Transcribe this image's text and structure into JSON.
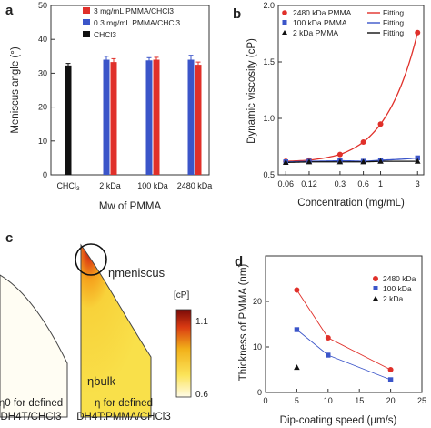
{
  "panels": {
    "a": {
      "label": "a"
    },
    "b": {
      "label": "b"
    },
    "c": {
      "label": "c"
    },
    "d": {
      "label": "d"
    }
  },
  "chart_data": [
    {
      "panel": "a",
      "type": "bar",
      "xlabel": "Mw of PMMA",
      "ylabel": "Meniscus angle (°)",
      "ylim": [
        0,
        50
      ],
      "yticks": [
        0,
        10,
        20,
        30,
        40,
        50
      ],
      "categories": [
        "CHCl3",
        "2 kDa",
        "100 kDa",
        "2480 kDa"
      ],
      "series": [
        {
          "name": "CHCl3",
          "color": "#111111",
          "values": [
            32.3,
            null,
            null,
            null
          ],
          "errors": [
            0.6,
            null,
            null,
            null
          ]
        },
        {
          "name": "0.3 mg/mL PMMA/CHCl3",
          "color": "#3b55c9",
          "values": [
            null,
            34.0,
            33.8,
            34.0
          ],
          "errors": [
            null,
            1.0,
            0.8,
            1.3
          ]
        },
        {
          "name": "3 mg/mL PMMA/CHCl3",
          "color": "#e0302a",
          "values": [
            null,
            33.3,
            34.0,
            32.5
          ],
          "errors": [
            null,
            1.0,
            0.7,
            0.8
          ]
        }
      ],
      "legend": [
        "3 mg/mL PMMA/CHCl3",
        "0.3 mg/mL PMMA/CHCl3",
        "CHCl3"
      ],
      "legend_position": "top-right"
    },
    {
      "panel": "b",
      "type": "scatter",
      "xlabel": "Concentration (mg/mL)",
      "ylabel": "Dynamic viscosity (cP)",
      "x_scale": "log",
      "xticks": [
        "0.06",
        "0.12",
        "0.3",
        "0.6",
        "1",
        "3"
      ],
      "xtick_values": [
        0.06,
        0.12,
        0.3,
        0.6,
        1,
        3
      ],
      "xlim": [
        0.048,
        3.6
      ],
      "ylim": [
        0.5,
        2.0
      ],
      "yticks": [
        0.5,
        1.0,
        1.5,
        2.0
      ],
      "series": [
        {
          "name": "2480 kDa PMMA",
          "marker": "circle",
          "color": "#e0302a",
          "x": [
            0.06,
            0.12,
            0.3,
            0.6,
            1,
            3
          ],
          "y": [
            0.62,
            0.63,
            0.68,
            0.79,
            0.95,
            1.76
          ]
        },
        {
          "name": "100 kDa PMMA",
          "marker": "square",
          "color": "#3b55c9",
          "x": [
            0.06,
            0.12,
            0.3,
            0.6,
            1,
            3
          ],
          "y": [
            0.615,
            0.62,
            0.625,
            0.62,
            0.63,
            0.65
          ]
        },
        {
          "name": "2 kDa PMMA",
          "marker": "triangle",
          "color": "#111111",
          "x": [
            0.06,
            0.12,
            0.3,
            0.6,
            1,
            3
          ],
          "y": [
            0.61,
            0.615,
            0.615,
            0.615,
            0.62,
            0.62
          ]
        }
      ],
      "fits": [
        {
          "name": "Fitting",
          "color": "#e0302a"
        },
        {
          "name": "Fitting",
          "color": "#3b55c9"
        },
        {
          "name": "Fitting",
          "color": "#111111"
        }
      ],
      "legend_position": "top-left"
    },
    {
      "panel": "c",
      "type": "heatmap",
      "left_caption_1": "η0 for defined",
      "left_caption_2": "DH4T/CHCl3",
      "right_caption_1": "η for defined",
      "right_caption_2": "DH4T:PMMA/CHCl3",
      "meniscus_label": "ηmeniscus",
      "bulk_label": "ηbulk",
      "colorbar_unit": "[cP]",
      "colorbar_max": "1.1",
      "colorbar_min": "0.6"
    },
    {
      "panel": "d",
      "type": "scatter",
      "xlabel": "Dip-coating speed  (μm/s)",
      "ylabel": "Thickness of PMMA (nm)",
      "xlim": [
        0,
        25
      ],
      "ylim": [
        0,
        30
      ],
      "xticks": [
        "0",
        "5",
        "10",
        "15",
        "20",
        "25"
      ],
      "yticks": [
        "0",
        "10",
        "20"
      ],
      "series": [
        {
          "name": "2480 kDa",
          "marker": "circle",
          "color": "#e0302a",
          "x": [
            5,
            10,
            20
          ],
          "y": [
            22.5,
            12.0,
            5.0
          ]
        },
        {
          "name": "100 kDa",
          "marker": "square",
          "color": "#3b55c9",
          "x": [
            5,
            10,
            20
          ],
          "y": [
            13.8,
            8.2,
            2.8
          ]
        },
        {
          "name": "2 kDa",
          "marker": "triangle",
          "color": "#111111",
          "x": [
            5
          ],
          "y": [
            5.5
          ]
        }
      ],
      "legend_position": "top-right"
    }
  ]
}
